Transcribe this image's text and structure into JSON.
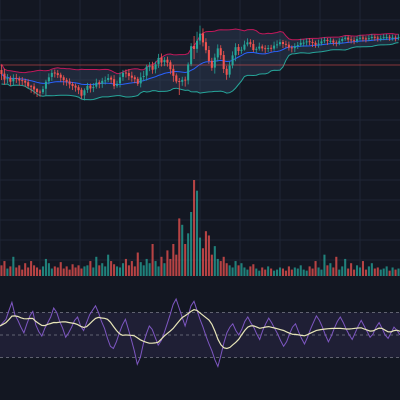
{
  "colors": {
    "background": "#131722",
    "grid": "#1f2535",
    "bullish": "#26a69a",
    "bearish": "#ef5350",
    "bb_upper": "#c2185b",
    "bb_lower": "#26a69a",
    "bb_basis": "#2962ff",
    "bb_fill": "#3a4a6b",
    "rsi_line": "#7e57c2",
    "rsi_ma": "#e8e6b8",
    "rsi_band": "#7e57c2",
    "rsi_levels": "#787b86",
    "ref_line": "#ef5350"
  },
  "chart_data": [
    {
      "type": "candlestick",
      "panel": "price",
      "title": "",
      "overlays": [
        "bollinger-bands"
      ],
      "grid": true,
      "legend": "none",
      "reference_line": 65,
      "ylim": [
        200,
        0
      ],
      "candles": [
        [
          40,
          36,
          30,
          45
        ],
        [
          36,
          30,
          25,
          41
        ],
        [
          30,
          31,
          26,
          35
        ],
        [
          31,
          27,
          23,
          33
        ],
        [
          27,
          30,
          23,
          34
        ],
        [
          30,
          29,
          25,
          34
        ],
        [
          29,
          27,
          22,
          31
        ],
        [
          27,
          26,
          22,
          30
        ],
        [
          26,
          24,
          20,
          28
        ],
        [
          24,
          20,
          18,
          27
        ],
        [
          20,
          19,
          13,
          21
        ],
        [
          19,
          16,
          11,
          22
        ],
        [
          16,
          13,
          8,
          17
        ],
        [
          13,
          12,
          8,
          15
        ],
        [
          12,
          15,
          10,
          18
        ],
        [
          15,
          22,
          8,
          24
        ],
        [
          22,
          26,
          19,
          30
        ],
        [
          26,
          30,
          22,
          33
        ],
        [
          30,
          29,
          25,
          33
        ],
        [
          29,
          27,
          24,
          32
        ],
        [
          27,
          24,
          20,
          29
        ],
        [
          24,
          21,
          16,
          26
        ],
        [
          21,
          19,
          15,
          23
        ],
        [
          19,
          16,
          12,
          22
        ],
        [
          16,
          14,
          10,
          18
        ],
        [
          14,
          12,
          8,
          16
        ],
        [
          12,
          9,
          5,
          14
        ],
        [
          9,
          3,
          0,
          11
        ],
        [
          3,
          8,
          -2,
          10
        ],
        [
          8,
          12,
          5,
          15
        ],
        [
          12,
          9,
          5,
          14
        ],
        [
          9,
          10,
          5,
          14
        ],
        [
          10,
          14,
          8,
          18
        ],
        [
          14,
          12,
          8,
          16
        ],
        [
          12,
          15,
          8,
          18
        ],
        [
          15,
          15,
          11,
          19
        ],
        [
          15,
          17,
          13,
          21
        ],
        [
          17,
          15,
          11,
          19
        ],
        [
          15,
          8,
          5,
          19
        ],
        [
          8,
          10,
          6,
          13
        ],
        [
          10,
          16,
          6,
          21
        ],
        [
          16,
          20,
          12,
          23
        ],
        [
          20,
          19,
          15,
          23
        ],
        [
          19,
          16,
          12,
          23
        ],
        [
          16,
          14,
          10,
          20
        ],
        [
          14,
          12,
          8,
          16
        ],
        [
          12,
          7,
          5,
          14
        ],
        [
          7,
          13,
          3,
          18
        ],
        [
          13,
          14,
          9,
          19
        ],
        [
          14,
          23,
          9,
          25
        ],
        [
          23,
          23,
          18,
          27
        ],
        [
          23,
          19,
          15,
          27
        ],
        [
          19,
          24,
          15,
          27
        ],
        [
          24,
          30,
          20,
          34
        ],
        [
          30,
          25,
          21,
          34
        ],
        [
          25,
          27,
          21,
          30
        ],
        [
          27,
          24,
          20,
          30
        ],
        [
          24,
          17,
          12,
          26
        ],
        [
          17,
          10,
          4,
          21
        ],
        [
          10,
          4,
          2,
          12
        ],
        [
          4,
          3,
          -10,
          7
        ],
        [
          3,
          5,
          -1,
          8
        ],
        [
          5,
          4,
          -2,
          8
        ],
        [
          4,
          20,
          0,
          22
        ],
        [
          20,
          38,
          18,
          41
        ],
        [
          38,
          35,
          25,
          48
        ],
        [
          35,
          43,
          31,
          52
        ],
        [
          43,
          50,
          39,
          58
        ],
        [
          50,
          41,
          37,
          55
        ],
        [
          41,
          33,
          30,
          45
        ],
        [
          33,
          22,
          19,
          37
        ],
        [
          22,
          15,
          12,
          25
        ],
        [
          15,
          25,
          9,
          29
        ],
        [
          25,
          34,
          21,
          38
        ],
        [
          34,
          27,
          23,
          37
        ],
        [
          27,
          13,
          9,
          31
        ],
        [
          13,
          7,
          2,
          16
        ],
        [
          7,
          16,
          4,
          20
        ],
        [
          16,
          26,
          13,
          30
        ],
        [
          26,
          34,
          20,
          38
        ],
        [
          34,
          30,
          26,
          37
        ],
        [
          30,
          31,
          27,
          34
        ],
        [
          31,
          36,
          30,
          40
        ],
        [
          36,
          38,
          34,
          42
        ],
        [
          38,
          36,
          33,
          41
        ],
        [
          36,
          30,
          28,
          40
        ],
        [
          30,
          31,
          27,
          33
        ],
        [
          31,
          33,
          29,
          37
        ],
        [
          33,
          31,
          28,
          35
        ],
        [
          31,
          30,
          26,
          34
        ],
        [
          30,
          31,
          27,
          34
        ],
        [
          31,
          30,
          27,
          34
        ],
        [
          30,
          33,
          28,
          37
        ],
        [
          33,
          34,
          30,
          38
        ],
        [
          34,
          36,
          32,
          39
        ],
        [
          36,
          34,
          30,
          38
        ],
        [
          34,
          33,
          30,
          37
        ],
        [
          33,
          30,
          27,
          36
        ],
        [
          30,
          29,
          25,
          32
        ],
        [
          29,
          31,
          25,
          34
        ],
        [
          31,
          32,
          28,
          35
        ],
        [
          32,
          34,
          30,
          38
        ],
        [
          34,
          34,
          30,
          37
        ],
        [
          34,
          35,
          31,
          38
        ],
        [
          35,
          34,
          31,
          38
        ],
        [
          34,
          33,
          29,
          37
        ],
        [
          33,
          31,
          28,
          35
        ],
        [
          31,
          32,
          28,
          36
        ],
        [
          32,
          34,
          30,
          37
        ],
        [
          34,
          35,
          32,
          38
        ],
        [
          35,
          34,
          30,
          37
        ],
        [
          34,
          34,
          31,
          37
        ],
        [
          34,
          32,
          29,
          36
        ],
        [
          32,
          31,
          28,
          34
        ],
        [
          31,
          33,
          29,
          36
        ],
        [
          33,
          35,
          31,
          37
        ],
        [
          35,
          36,
          33,
          38
        ],
        [
          36,
          34,
          31,
          38
        ],
        [
          34,
          33,
          30,
          37
        ],
        [
          33,
          32,
          29,
          36
        ],
        [
          32,
          34,
          30,
          37
        ],
        [
          34,
          35,
          32,
          38
        ],
        [
          35,
          34,
          31,
          37
        ],
        [
          34,
          33,
          30,
          36
        ],
        [
          33,
          34,
          31,
          37
        ],
        [
          34,
          35,
          32,
          38
        ],
        [
          35,
          34,
          31,
          37
        ],
        [
          34,
          33,
          30,
          36
        ],
        [
          33,
          33,
          30,
          36
        ],
        [
          33,
          34,
          31,
          37
        ],
        [
          34,
          34,
          31,
          37
        ],
        [
          34,
          33,
          30,
          36
        ],
        [
          33,
          33,
          30,
          36
        ],
        [
          33,
          32,
          29,
          35
        ],
        [
          32,
          33,
          30,
          36
        ]
      ]
    },
    {
      "type": "bar",
      "panel": "volume",
      "title": "",
      "ylim": [
        0,
        90
      ],
      "values": [
        10,
        14,
        7,
        9,
        18,
        8,
        10,
        6,
        12,
        8,
        14,
        10,
        8,
        6,
        9,
        16,
        12,
        7,
        9,
        8,
        13,
        7,
        9,
        6,
        11,
        8,
        10,
        7,
        9,
        10,
        14,
        8,
        18,
        10,
        12,
        9,
        20,
        14,
        11,
        9,
        8,
        12,
        16,
        10,
        14,
        9,
        22,
        13,
        10,
        16,
        12,
        30,
        14,
        9,
        18,
        12,
        24,
        16,
        30,
        20,
        54,
        48,
        30,
        40,
        60,
        90,
        80,
        36,
        26,
        42,
        38,
        20,
        28,
        16,
        14,
        18,
        12,
        10,
        8,
        14,
        10,
        12,
        8,
        6,
        9,
        11,
        7,
        5,
        8,
        6,
        9,
        7,
        5,
        6,
        8,
        7,
        5,
        9,
        6,
        8,
        7,
        10,
        6,
        5,
        9,
        7,
        14,
        8,
        6,
        20,
        10,
        12,
        8,
        18,
        6,
        9,
        16,
        7,
        12,
        6,
        10,
        8,
        14,
        6,
        9,
        12,
        7,
        8,
        6,
        7,
        9,
        5,
        8,
        6,
        7
      ]
    },
    {
      "type": "line",
      "panel": "rsi",
      "title": "",
      "ylim": [
        10,
        90
      ],
      "band": [
        30,
        70
      ],
      "levels": [
        70,
        50,
        30
      ],
      "series_values": [
        58,
        61,
        64,
        72,
        79,
        68,
        63,
        57,
        52,
        60,
        67,
        71,
        59,
        53,
        49,
        56,
        61,
        66,
        74,
        70,
        62,
        56,
        48,
        52,
        57,
        63,
        66,
        58,
        54,
        61,
        68,
        72,
        76,
        70,
        62,
        56,
        47,
        40,
        38,
        44,
        52,
        59,
        64,
        55,
        46,
        36,
        24,
        30,
        42,
        51,
        58,
        55,
        48,
        41,
        45,
        52,
        60,
        68,
        77,
        82,
        74,
        66,
        58,
        67,
        76,
        80,
        72,
        64,
        57,
        49,
        42,
        36,
        28,
        22,
        32,
        43,
        52,
        57,
        60,
        54,
        50,
        55,
        62,
        66,
        61,
        57,
        51,
        46,
        54,
        60,
        65,
        61,
        56,
        51,
        45,
        40,
        44,
        51,
        57,
        60,
        53,
        47,
        42,
        48,
        55,
        61,
        67,
        63,
        57,
        50,
        44,
        49,
        56,
        62,
        66,
        61,
        55,
        50,
        46,
        52,
        58,
        63,
        58,
        53,
        48,
        51,
        57,
        61,
        56,
        50,
        47,
        52,
        57,
        54,
        50
      ]
    }
  ]
}
